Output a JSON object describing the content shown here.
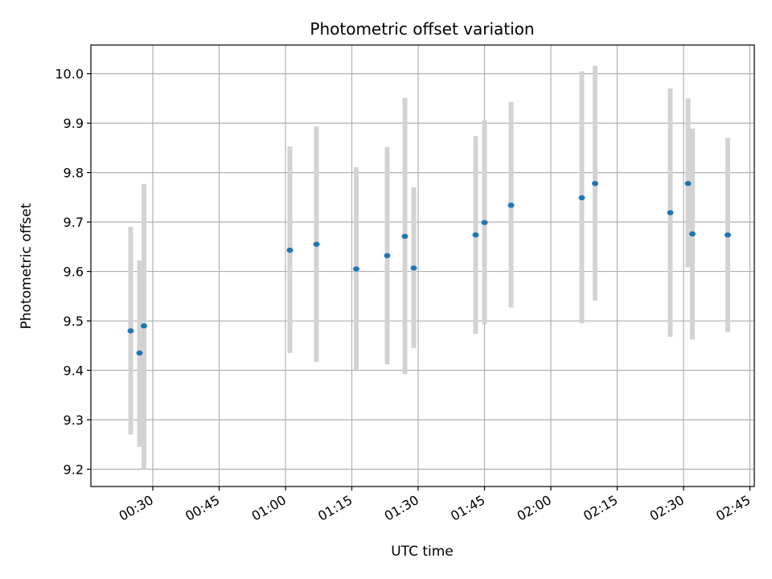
{
  "chart_data": {
    "type": "scatter",
    "title": "Photometric offset variation",
    "xlabel": "UTC time",
    "ylabel": "Photometric offset",
    "x_type": "time",
    "x_range": [
      "00:16",
      "02:46"
    ],
    "x_ticks": [
      "00:30",
      "00:45",
      "01:00",
      "01:15",
      "01:30",
      "01:45",
      "02:00",
      "02:15",
      "02:30",
      "02:45"
    ],
    "ylim": [
      9.165,
      10.058
    ],
    "y_ticks": [
      "9.2",
      "9.3",
      "9.4",
      "9.5",
      "9.6",
      "9.7",
      "9.8",
      "9.9",
      "10.0"
    ],
    "grid": true,
    "colors": {
      "point": "#1f77b4",
      "errorbar": "#d3d3d3",
      "grid": "#b0b0b0",
      "axis": "#000000"
    },
    "points": [
      {
        "x": "00:25",
        "y": 9.48,
        "y_low": 9.27,
        "y_high": 9.69
      },
      {
        "x": "00:27",
        "y": 9.435,
        "y_low": 9.245,
        "y_high": 9.622
      },
      {
        "x": "00:28",
        "y": 9.49,
        "y_low": 9.2,
        "y_high": 9.777
      },
      {
        "x": "01:01",
        "y": 9.643,
        "y_low": 9.435,
        "y_high": 9.853
      },
      {
        "x": "01:07",
        "y": 9.655,
        "y_low": 9.417,
        "y_high": 9.893
      },
      {
        "x": "01:16",
        "y": 9.605,
        "y_low": 9.4,
        "y_high": 9.811
      },
      {
        "x": "01:23",
        "y": 9.632,
        "y_low": 9.412,
        "y_high": 9.852
      },
      {
        "x": "01:27",
        "y": 9.671,
        "y_low": 9.392,
        "y_high": 9.951
      },
      {
        "x": "01:29",
        "y": 9.607,
        "y_low": 9.445,
        "y_high": 9.77
      },
      {
        "x": "01:43",
        "y": 9.674,
        "y_low": 9.474,
        "y_high": 9.874
      },
      {
        "x": "01:45",
        "y": 9.699,
        "y_low": 9.493,
        "y_high": 9.906
      },
      {
        "x": "01:51",
        "y": 9.734,
        "y_low": 9.527,
        "y_high": 9.943
      },
      {
        "x": "02:07",
        "y": 9.749,
        "y_low": 9.495,
        "y_high": 10.005
      },
      {
        "x": "02:10",
        "y": 9.778,
        "y_low": 9.541,
        "y_high": 10.016
      },
      {
        "x": "02:27",
        "y": 9.719,
        "y_low": 9.468,
        "y_high": 9.97
      },
      {
        "x": "02:31",
        "y": 9.778,
        "y_low": 9.608,
        "y_high": 9.95
      },
      {
        "x": "02:32",
        "y": 9.676,
        "y_low": 9.462,
        "y_high": 9.889
      },
      {
        "x": "02:40",
        "y": 9.674,
        "y_low": 9.478,
        "y_high": 9.87
      }
    ]
  }
}
